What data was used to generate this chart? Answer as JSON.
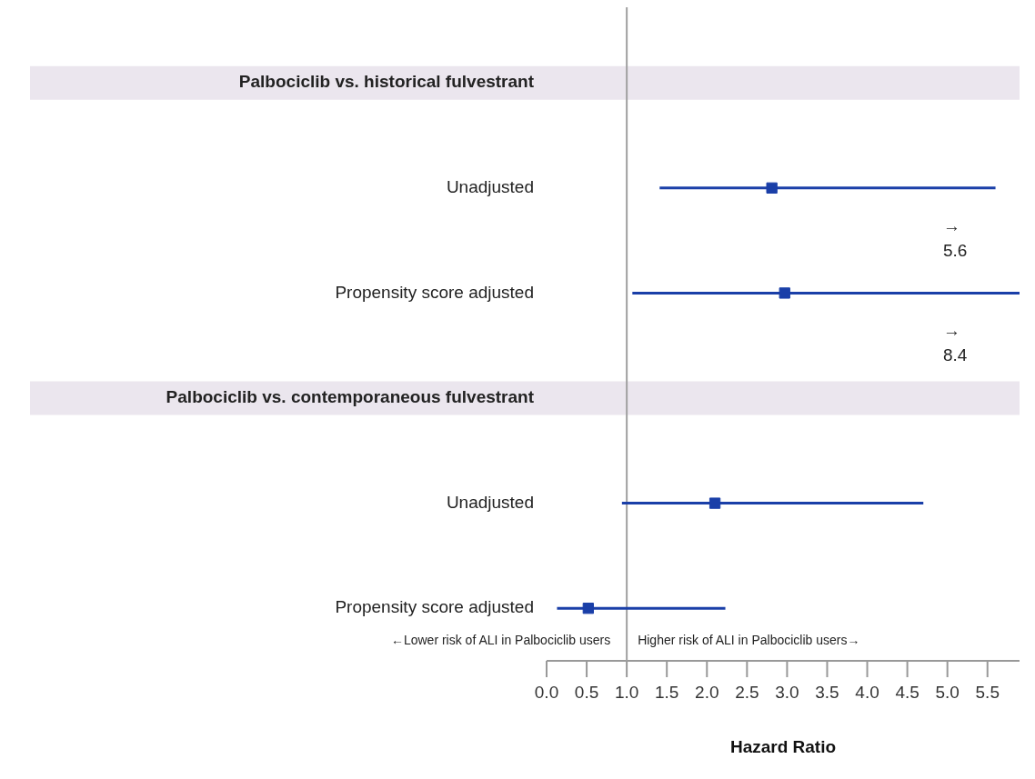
{
  "chart_data": {
    "type": "scatter",
    "orientation": "horizontal",
    "xlabel": "Hazard Ratio",
    "categories": [
      "Palbociclib vs. historical fulvestrant",
      "Unadjusted",
      "Propensity score adjusted",
      "Palbociclib vs. contemporaneous fulvestrant",
      "Unadjusted",
      "Propensity score adjusted"
    ],
    "series": [
      {
        "color": "#1a3fa8",
        "values": [
          null,
          2.81,
          2.97,
          null,
          2.1,
          0.52
        ],
        "errors": [
          null,
          [
            1.41,
            5.6
          ],
          [
            1.07,
            8.4
          ],
          null,
          [
            0.94,
            4.7
          ],
          [
            0.13,
            2.23
          ]
        ]
      }
    ],
    "marker": "square",
    "xlim": [
      0,
      5.9
    ],
    "xticks": [
      {
        "value": 0,
        "label": "0.0"
      },
      0.5,
      {
        "value": 1,
        "label": "1.0"
      },
      1.5,
      {
        "value": 2,
        "label": "2.0"
      },
      2.5,
      {
        "value": 3,
        "label": "3.0"
      },
      3.5,
      {
        "value": 4,
        "label": "4.0"
      },
      4.5,
      {
        "value": 5,
        "label": "5.0"
      },
      5.5
    ],
    "ref_lines": [
      {
        "axis": "x",
        "value": 1,
        "color": "#a0a0a0"
      }
    ],
    "bands": [
      {
        "axis": "y",
        "from": "Palbociclib vs. historical fulvestrant",
        "to": "Palbociclib vs. historical fulvestrant",
        "color": "#ebe6ee"
      },
      {
        "axis": "y",
        "from": "Palbociclib vs. contemporaneous fulvestrant",
        "to": "Palbociclib vs. contemporaneous fulvestrant",
        "color": "#ebe6ee"
      }
    ],
    "annotations": [
      "←Lower risk of ALI in Palbociclib users",
      "Higher risk of ALI in Palbociclib users→",
      "→\n5.6",
      "→\n8.4"
    ],
    "grid": false,
    "legend": false
  }
}
